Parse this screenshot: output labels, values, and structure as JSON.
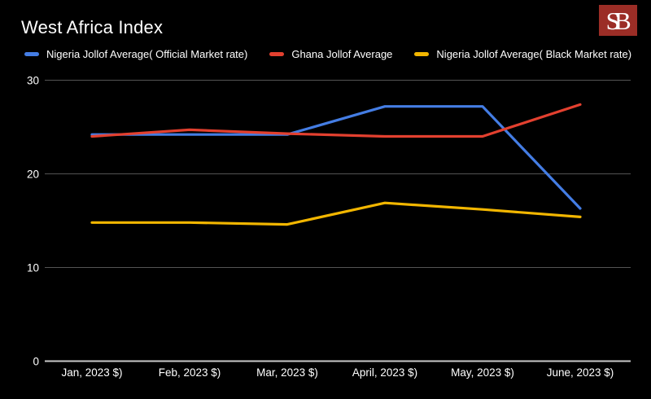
{
  "header": {
    "title": "West Africa Index",
    "logo_text": "SB"
  },
  "chart_data": {
    "type": "line",
    "title": "West Africa Index",
    "categories": [
      "Jan, 2023 $)",
      "Feb, 2023 $)",
      "Mar, 2023 $)",
      "April, 2023 $)",
      "May, 2023 $)",
      "June, 2023 $)"
    ],
    "series": [
      {
        "name": "Nigeria Jollof Average( Official Market rate)",
        "color": "#447de4",
        "values": [
          24.2,
          24.2,
          24.2,
          27.2,
          27.2,
          16.3
        ]
      },
      {
        "name": "Ghana Jollof Average",
        "color": "#e3402f",
        "values": [
          24.0,
          24.7,
          24.3,
          24.0,
          24.0,
          27.4
        ]
      },
      {
        "name": "Nigeria Jollof Average( Black Market rate)",
        "color": "#f2b600",
        "values": [
          14.8,
          14.8,
          14.6,
          16.9,
          16.2,
          15.4
        ]
      }
    ],
    "xlabel": "",
    "ylabel": "",
    "yticks": [
      0,
      10,
      20,
      30
    ],
    "ylim": [
      0,
      30
    ],
    "grid": "horizontal",
    "legend_position": "top",
    "background": "#000000",
    "grid_color": "#545454",
    "axis_color": "#c9c9c9",
    "text_color": "#ffffff"
  }
}
